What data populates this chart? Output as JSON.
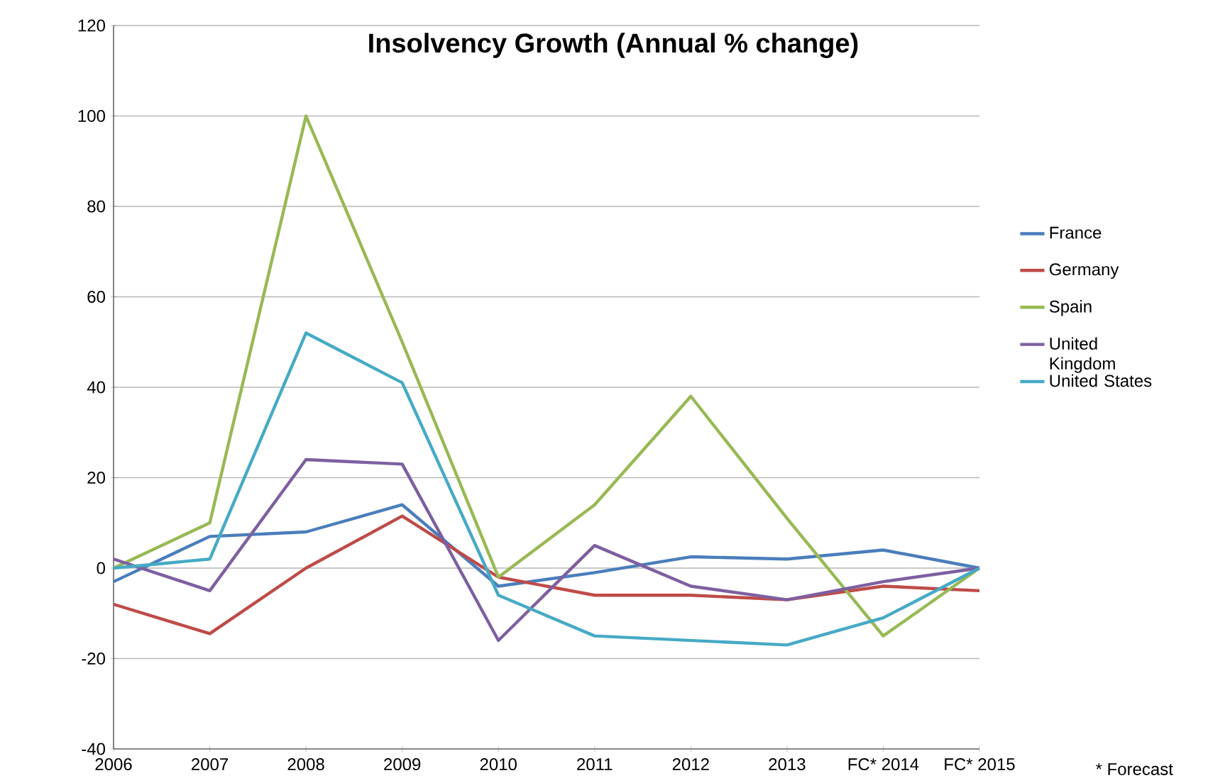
{
  "chart_data": {
    "type": "line",
    "title": "Insolvency Growth (Annual % change)",
    "categories": [
      "2006",
      "2007",
      "2008",
      "2009",
      "2010",
      "2011",
      "2012",
      "2013",
      "FC* 2014",
      "FC* 2015"
    ],
    "series": [
      {
        "name": "France",
        "color": "#4a7ebb",
        "values": [
          -3,
          7,
          8,
          14,
          -4,
          -1,
          2.5,
          2,
          4,
          0
        ]
      },
      {
        "name": "Germany",
        "color": "#be4b48",
        "values": [
          -8,
          -14.5,
          0,
          11.5,
          -2,
          -6,
          -6,
          -7,
          -4,
          -5
        ]
      },
      {
        "name": "Spain",
        "color": "#98b954",
        "values": [
          0,
          10,
          100,
          50,
          -2,
          14,
          38,
          11,
          -15,
          0
        ]
      },
      {
        "name": "United Kingdom",
        "color": "#7d60a0",
        "values": [
          2,
          -5,
          24,
          23,
          -16,
          5,
          -4,
          -7,
          -3,
          0
        ]
      },
      {
        "name": "United States",
        "color": "#46aac5",
        "values": [
          0,
          2,
          52,
          41,
          -6,
          -15,
          -16,
          -17,
          -11,
          0
        ]
      }
    ],
    "ylim": [
      -40,
      120
    ],
    "yticks": [
      -40,
      -20,
      0,
      20,
      40,
      60,
      80,
      100,
      120
    ],
    "grid": "y",
    "legend": "right",
    "marker": "none",
    "line_style": "solid",
    "annotations": [
      "* Forecast"
    ]
  }
}
